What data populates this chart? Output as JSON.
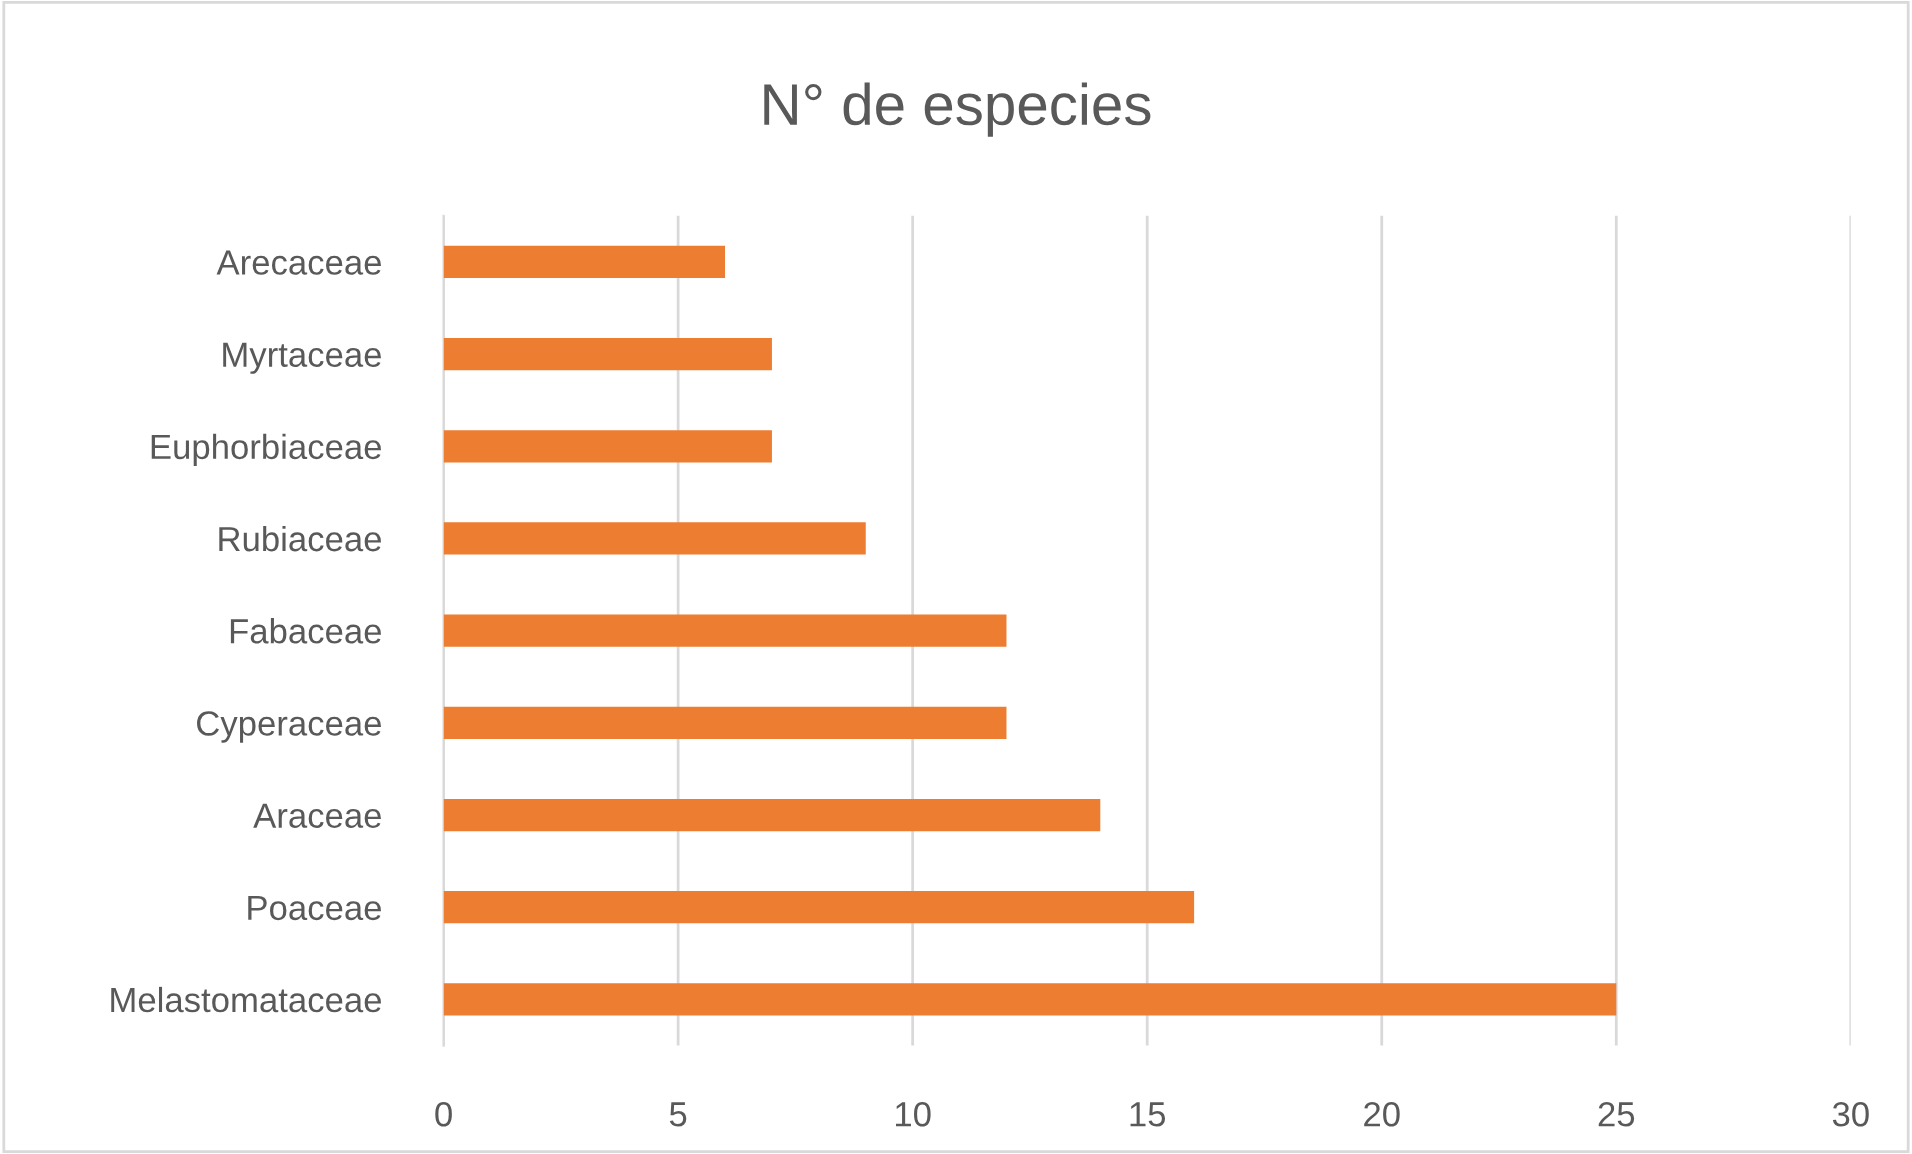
{
  "chart_data": {
    "type": "bar",
    "orientation": "horizontal",
    "title": "N° de especies",
    "categories": [
      "Arecaceae",
      "Myrtaceae",
      "Euphorbiaceae",
      "Rubiaceae",
      "Fabaceae",
      "Cyperaceae",
      "Araceae",
      "Poaceae",
      "Melastomataceae"
    ],
    "values": [
      6,
      7,
      7,
      9,
      12,
      12,
      14,
      16,
      25
    ],
    "color": "#ed7d31",
    "xlim": [
      0,
      30
    ],
    "xticks": [
      0,
      5,
      10,
      15,
      20,
      25,
      30
    ],
    "grid": "x",
    "legend": false
  }
}
